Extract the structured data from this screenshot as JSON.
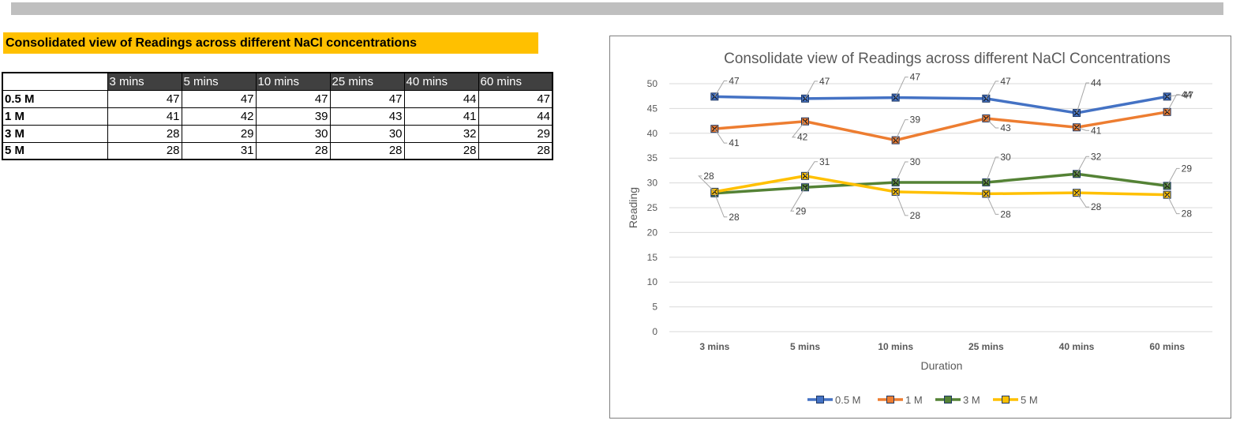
{
  "heading": "Consolidated view of Readings across different NaCl concentrations",
  "table": {
    "columns": [
      "3 mins",
      "5 mins",
      "10 mins",
      "25 mins",
      "40 mins",
      "60 mins"
    ],
    "rows": [
      {
        "label": "0.5 M",
        "values": [
          47,
          47,
          47,
          47,
          44,
          47
        ]
      },
      {
        "label": "1 M",
        "values": [
          41,
          42,
          39,
          43,
          41,
          44
        ]
      },
      {
        "label": "3 M",
        "values": [
          28,
          29,
          30,
          30,
          32,
          29
        ]
      },
      {
        "label": "5 M",
        "values": [
          28,
          31,
          28,
          28,
          28,
          28
        ]
      }
    ]
  },
  "chart_data": {
    "type": "line",
    "title": "Consolidate view of Readings across different NaCl Concentrations",
    "xlabel": "Duration",
    "ylabel": "Reading",
    "categories": [
      "3 mins",
      "5 mins",
      "10 mins",
      "25 mins",
      "40 mins",
      "60 mins"
    ],
    "ylim": [
      0,
      50
    ],
    "ytick_step": 5,
    "grid": true,
    "legend": "bottom",
    "series": [
      {
        "name": "0.5 M",
        "color": "#4472c4",
        "values": [
          47.4,
          47.0,
          47.2,
          47.0,
          44.1,
          47.4
        ],
        "labels": [
          "47",
          "47",
          "47",
          "47",
          "44",
          "47"
        ]
      },
      {
        "name": "1 M",
        "color": "#ed7d31",
        "values": [
          40.9,
          42.4,
          38.6,
          43.0,
          41.2,
          44.3
        ],
        "labels": [
          "41",
          "42",
          "39",
          "43",
          "41",
          "44"
        ]
      },
      {
        "name": "3 M",
        "color": "#548235",
        "values": [
          27.9,
          29.1,
          30.1,
          30.1,
          31.8,
          29.4
        ],
        "labels": [
          "28",
          "29",
          "30",
          "30",
          "32",
          "29"
        ]
      },
      {
        "name": "5 M",
        "color": "#ffc000",
        "values": [
          28.2,
          31.4,
          28.2,
          27.8,
          28.0,
          27.6
        ],
        "labels": [
          "28",
          "31",
          "28",
          "28",
          "28",
          "28"
        ]
      }
    ]
  }
}
